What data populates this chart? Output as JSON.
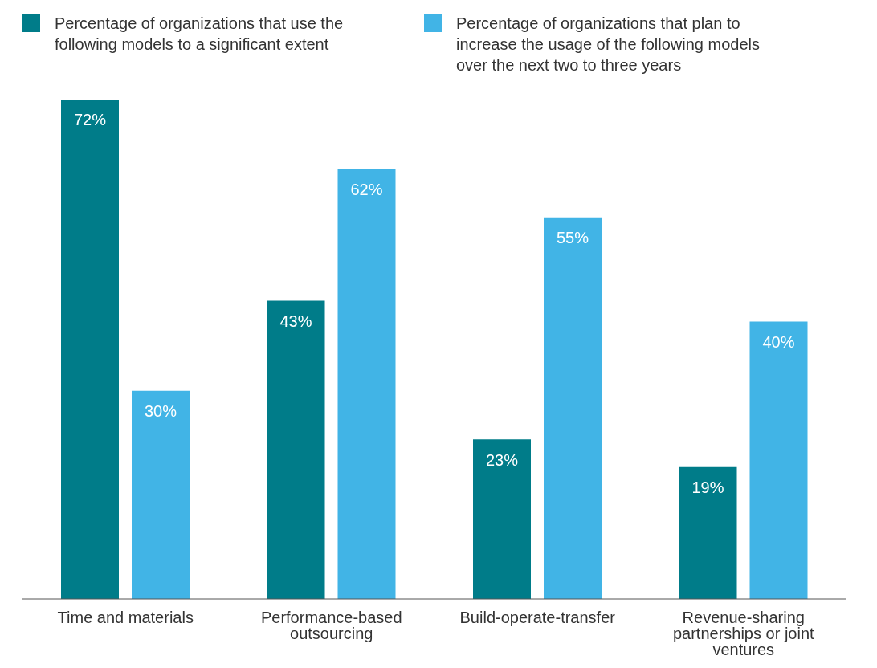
{
  "chart_data": {
    "type": "bar",
    "categories": [
      "Time and materials",
      "Performance-based outsourcing",
      "Build-operate-transfer",
      "Revenue-sharing partnerships or joint ventures"
    ],
    "series": [
      {
        "name": "Percentage of organizations that use the following models to a significant extent",
        "color": "#007c89",
        "values": [
          72,
          43,
          23,
          19
        ],
        "value_labels": [
          "72%",
          "43%",
          "23%",
          "19%"
        ]
      },
      {
        "name": "Percentage of organizations that plan to increase the usage of the following models over the next two to three years",
        "color": "#41b4e6",
        "values": [
          30,
          62,
          55,
          40
        ],
        "value_labels": [
          "30%",
          "62%",
          "55%",
          "40%"
        ]
      }
    ],
    "grid": false,
    "legend": "top left"
  }
}
